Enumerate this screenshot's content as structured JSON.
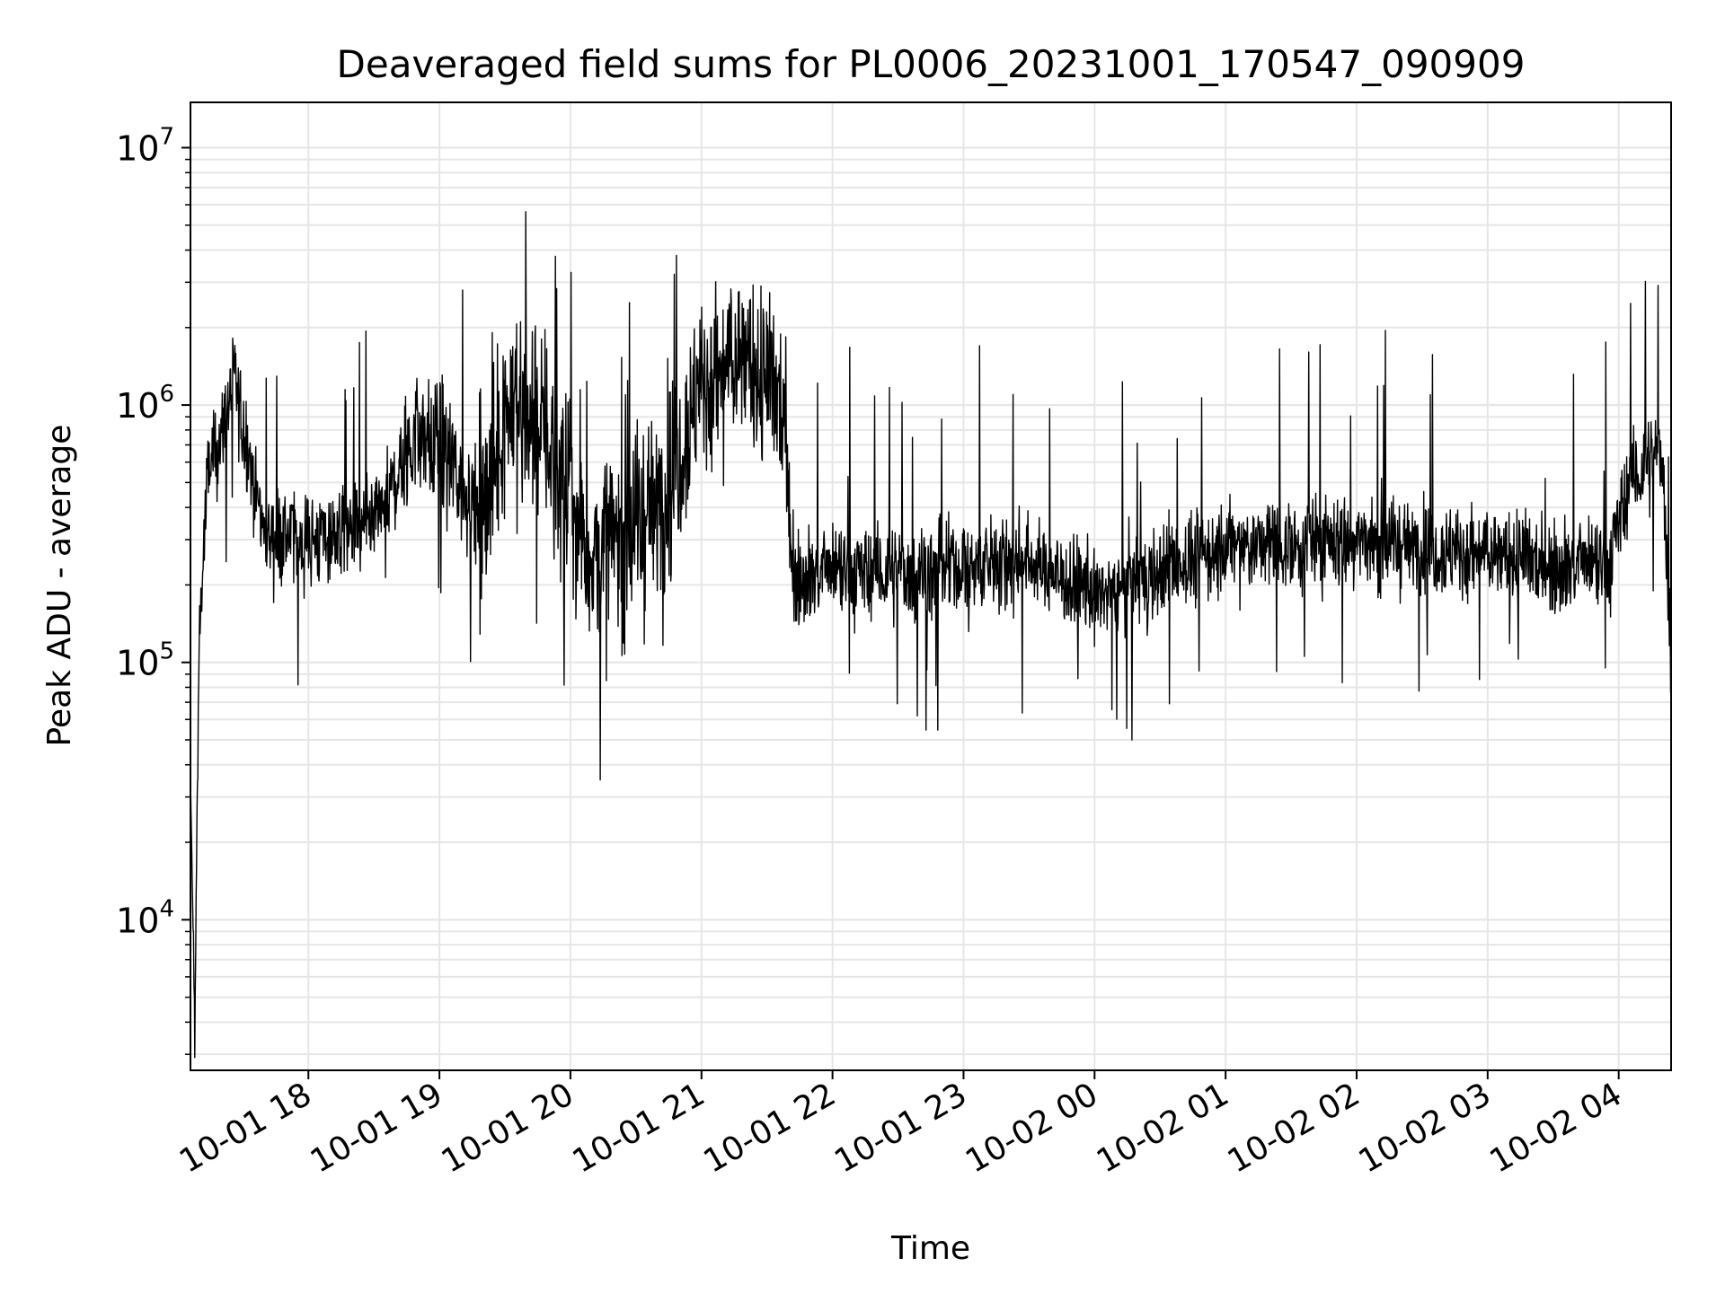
{
  "chart_data": {
    "type": "line",
    "title": "Deaveraged field sums for PL0006_20231001_170547_090909",
    "xlabel": "Time",
    "ylabel": "Peak ADU - average",
    "yscale": "log",
    "ylim": [
      2600,
      15000000
    ],
    "xlim": [
      "2023-10-01 17:06",
      "2023-10-02 04:24"
    ],
    "x_ticks": [
      "10-01 18",
      "10-01 19",
      "10-01 20",
      "10-01 21",
      "10-01 22",
      "10-01 23",
      "10-02 00",
      "10-02 01",
      "10-02 02",
      "10-02 03",
      "10-02 04"
    ],
    "y_ticks": [
      {
        "base": "10",
        "exp": "4",
        "value": 10000
      },
      {
        "base": "10",
        "exp": "5",
        "value": 100000
      },
      {
        "base": "10",
        "exp": "6",
        "value": 1000000
      },
      {
        "base": "10",
        "exp": "7",
        "value": 10000000
      }
    ],
    "grid": true,
    "line_color": "#000000",
    "series": [
      {
        "values_description_points": [
          [
            "2023-10-01 17:06",
            35000
          ],
          [
            "2023-10-01 17:08",
            3800
          ],
          [
            "2023-10-01 17:10",
            130000
          ],
          [
            "2023-10-01 17:14",
            550000
          ],
          [
            "2023-10-01 17:20",
            750000
          ],
          [
            "2023-10-01 17:26",
            1250000
          ],
          [
            "2023-10-01 17:32",
            700000
          ],
          [
            "2023-10-01 17:40",
            320000
          ],
          [
            "2023-10-01 18:00",
            300000
          ],
          [
            "2023-10-01 18:30",
            330000
          ],
          [
            "2023-10-01 18:50",
            800000
          ],
          [
            "2023-10-01 19:05",
            600000
          ],
          [
            "2023-10-01 19:20",
            350000
          ],
          [
            "2023-10-01 19:30",
            1000000
          ],
          [
            "2023-10-01 19:45",
            900000
          ],
          [
            "2023-10-01 20:10",
            250000
          ],
          [
            "2023-10-01 20:40",
            400000
          ],
          [
            "2023-10-01 21:00",
            1200000
          ],
          [
            "2023-10-01 21:20",
            1500000
          ],
          [
            "2023-10-01 21:38",
            1000000
          ],
          [
            "2023-10-01 21:42",
            220000
          ],
          [
            "2023-10-01 22:30",
            220000
          ],
          [
            "2023-10-01 23:30",
            250000
          ],
          [
            "2023-10-02 00:00",
            180000
          ],
          [
            "2023-10-02 01:00",
            280000
          ],
          [
            "2023-10-02 02:00",
            300000
          ],
          [
            "2023-10-02 03:00",
            260000
          ],
          [
            "2023-10-02 03:55",
            230000
          ],
          [
            "2023-10-02 04:05",
            500000
          ],
          [
            "2023-10-02 04:20",
            650000
          ],
          [
            "2023-10-02 04:24",
            110000
          ]
        ]
      }
    ]
  }
}
